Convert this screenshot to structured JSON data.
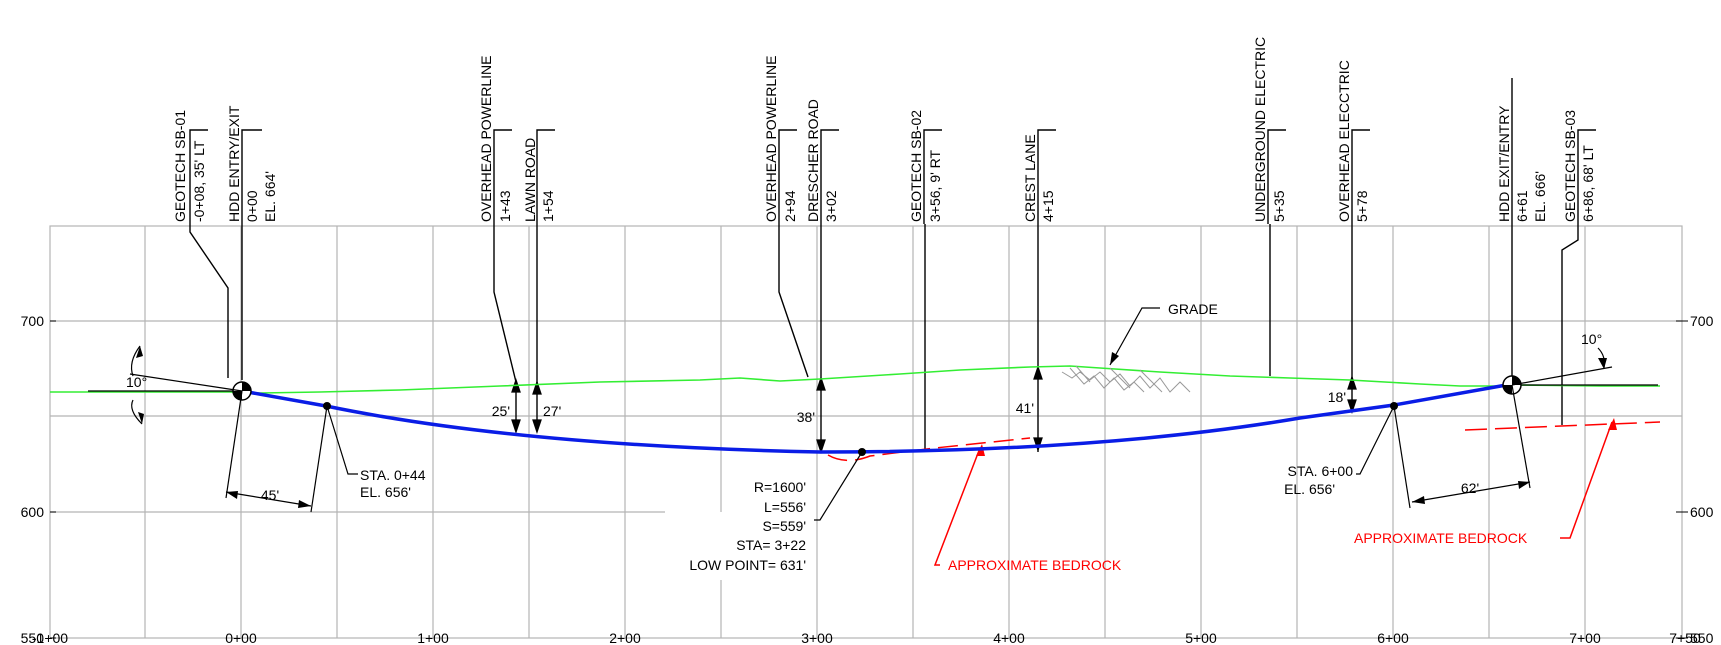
{
  "profile": {
    "elev_axis": {
      "labels": [
        "700",
        "600",
        "550"
      ],
      "values": [
        700,
        600,
        550
      ],
      "min": 550,
      "max": 750
    },
    "station_axis": {
      "labels": [
        "-1+00",
        "0+00",
        "1+00",
        "2+00",
        "3+00",
        "4+00",
        "5+00",
        "6+00",
        "7+00",
        "7+50"
      ],
      "values": [
        -100,
        0,
        100,
        200,
        300,
        400,
        500,
        600,
        700,
        750
      ]
    },
    "callouts": [
      {
        "lines": [
          "GEOTECH SB-01",
          "-0+08, 35' LT"
        ],
        "sta": -8
      },
      {
        "lines": [
          "HDD ENTRY/EXIT",
          "0+00",
          "EL. 664'"
        ],
        "sta": 0
      },
      {
        "lines": [
          "OVERHEAD POWERLINE",
          "1+43"
        ],
        "sta": 143
      },
      {
        "lines": [
          "LAWN ROAD",
          "1+54"
        ],
        "sta": 154
      },
      {
        "lines": [
          "OVERHEAD POWERLINE",
          "2+94"
        ],
        "sta": 294
      },
      {
        "lines": [
          "DRESCHER ROAD",
          "3+02"
        ],
        "sta": 302
      },
      {
        "lines": [
          "GEOTECH SB-02",
          "3+56, 9' RT"
        ],
        "sta": 356
      },
      {
        "lines": [
          "CREST LANE",
          "4+15"
        ],
        "sta": 415
      },
      {
        "lines": [
          "UNDERGROUND ELECTRIC",
          "5+35"
        ],
        "sta": 535
      },
      {
        "lines": [
          "OVERHEAD ELECCTRIC",
          "5+78"
        ],
        "sta": 578
      },
      {
        "lines": [
          "HDD EXIT/ENTRY",
          "6+61",
          "EL. 666'"
        ],
        "sta": 661
      },
      {
        "lines": [
          "GEOTECH SB-03",
          "6+86, 68' LT"
        ],
        "sta": 686
      }
    ],
    "depths": [
      "25'",
      "27'",
      "38'",
      "41'",
      "18'"
    ],
    "angles": [
      "10°",
      "10°"
    ],
    "offsets": [
      "45'",
      "62'"
    ],
    "grade_label": "GRADE",
    "sta_044": [
      "STA. 0+44",
      "EL. 656'"
    ],
    "sta_600": [
      "STA. 6+00",
      "EL. 656'"
    ],
    "curve_info": [
      "R=1600'",
      "L=556'",
      "S=559'",
      "STA= 3+22",
      "LOW POINT= 631'"
    ],
    "bedrock_label": "APPROXIMATE BEDROCK",
    "colors": {
      "grade": "#33ee33",
      "bore": "#0a1de6",
      "bedrock": "#ff0000",
      "grid": "#b4b4b4"
    }
  }
}
